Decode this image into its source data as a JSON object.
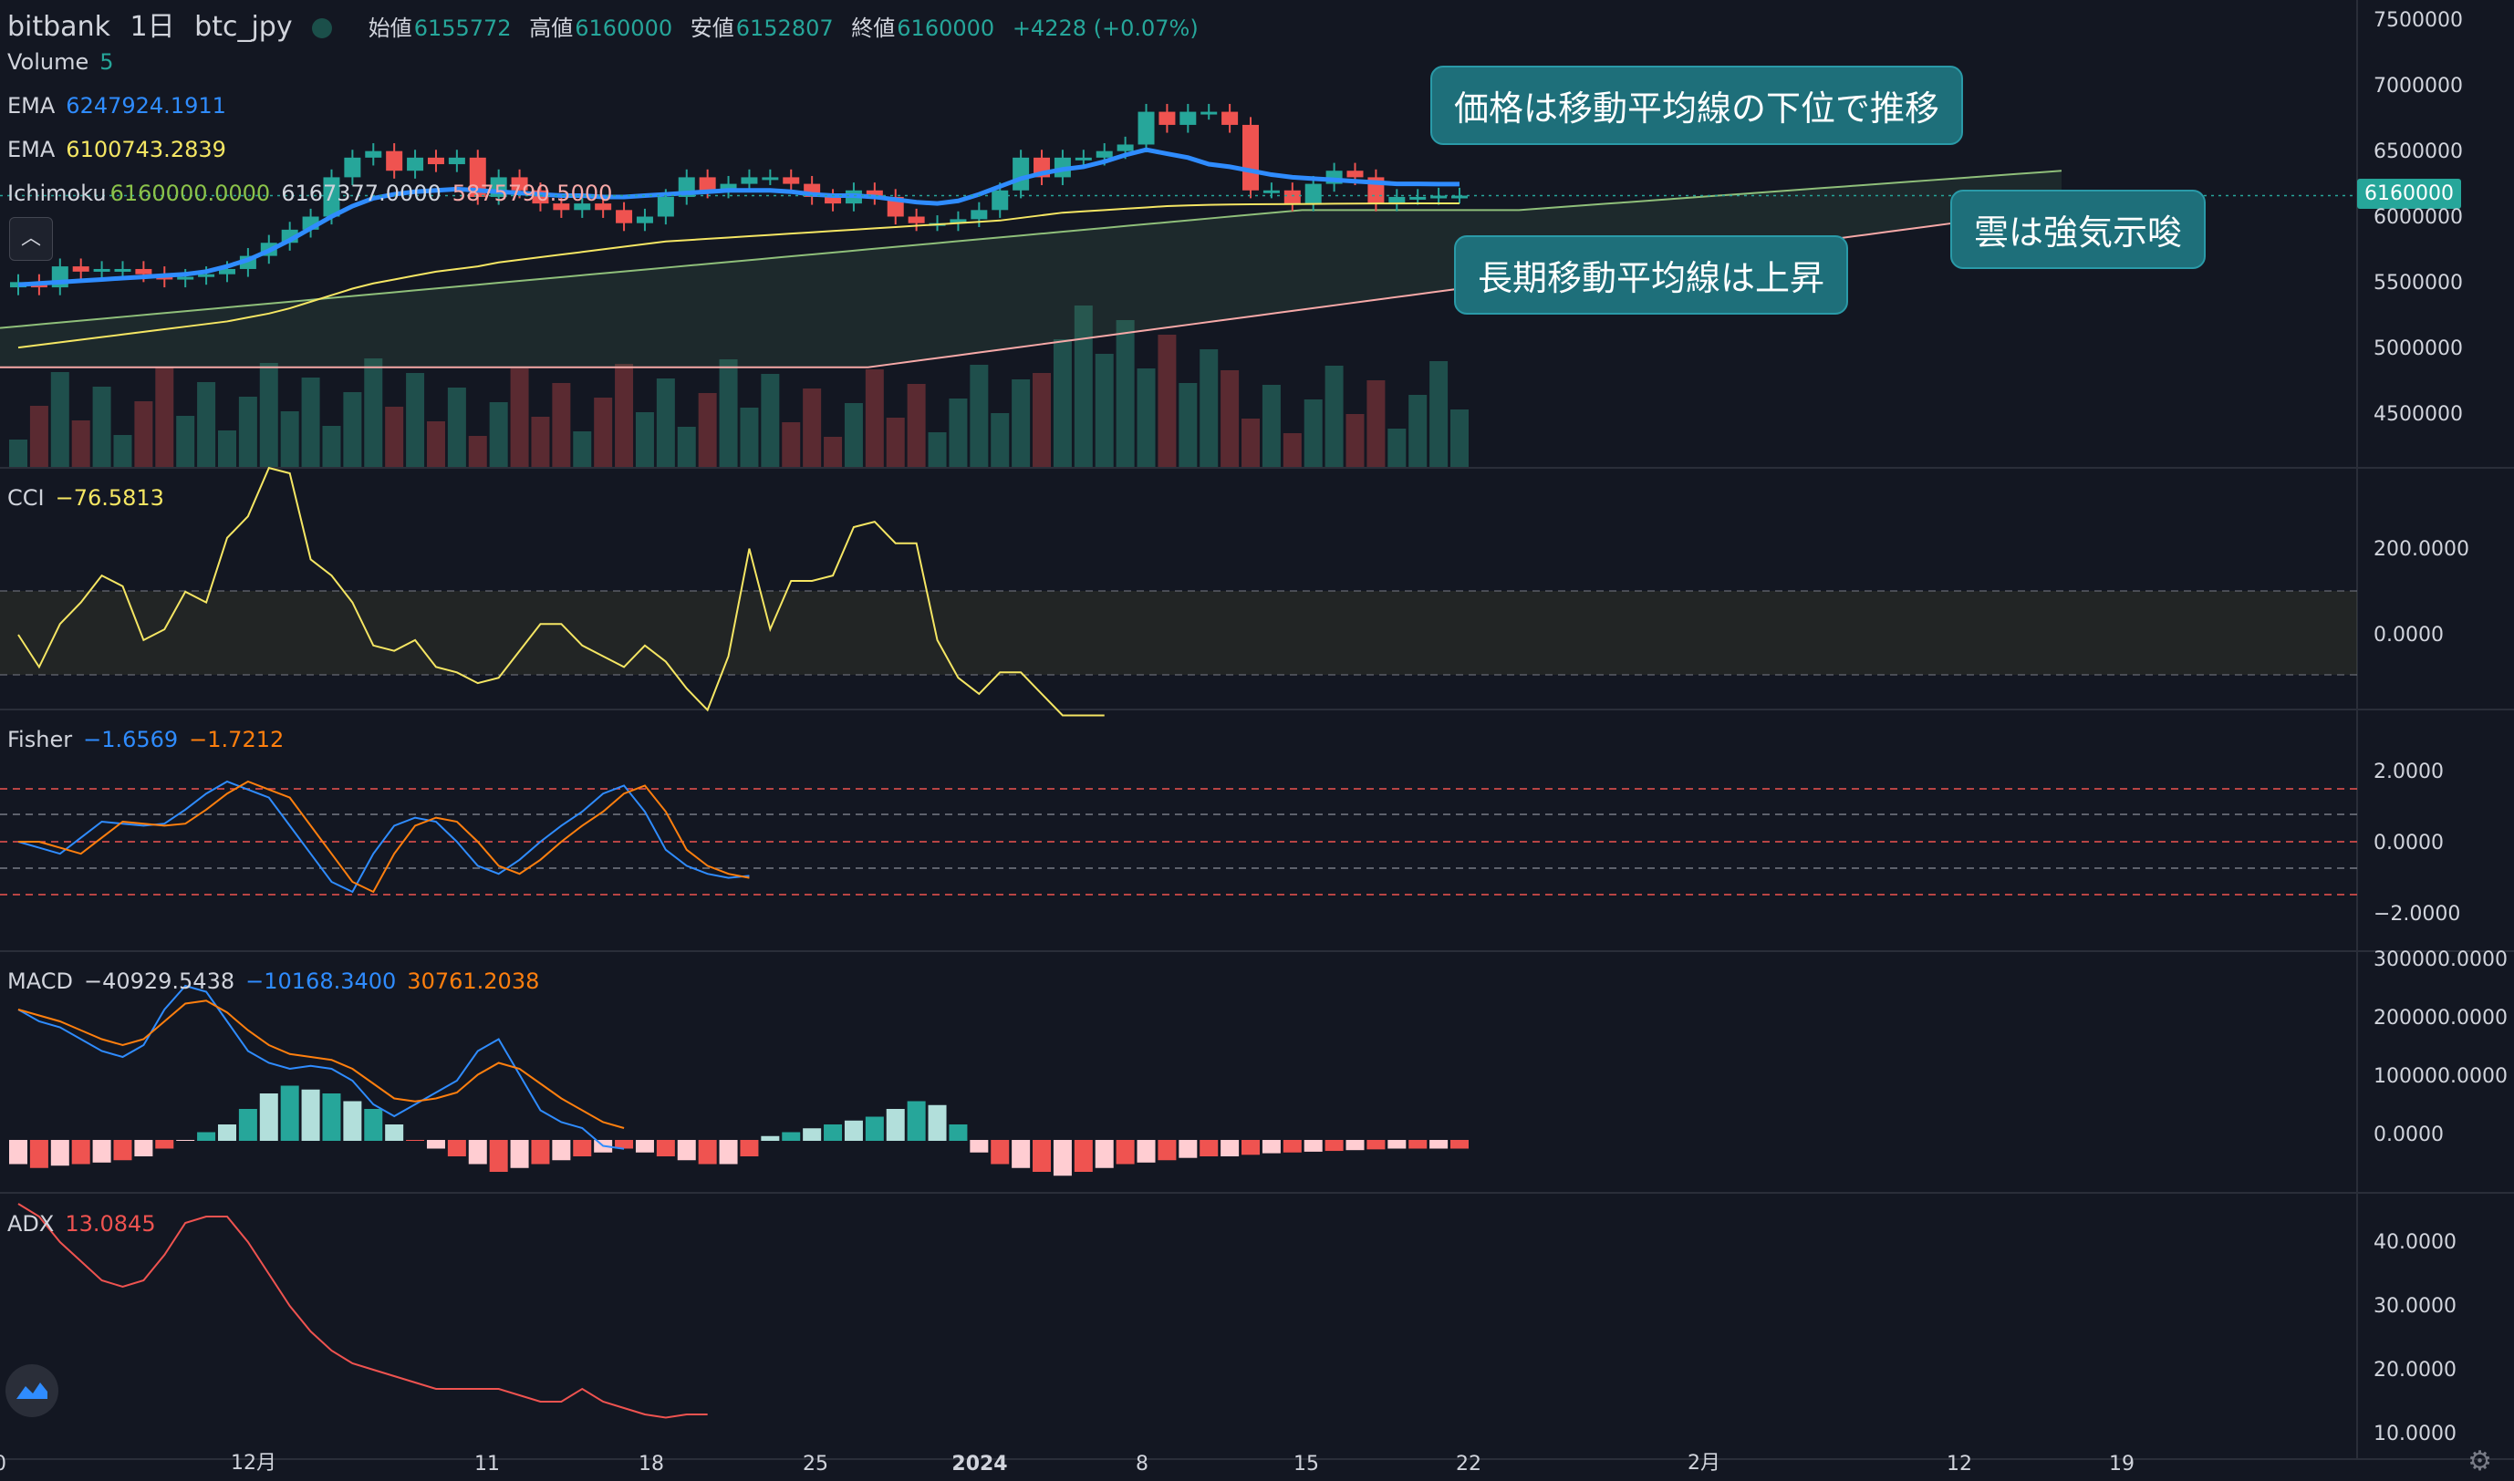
{
  "header": {
    "symbol_prefix": "bitbank",
    "interval": "1日",
    "symbol": "btc_jpy",
    "open_label": "始値",
    "open": "6155772",
    "high_label": "高値",
    "high": "6160000",
    "low_label": "安値",
    "low": "6152807",
    "close_label": "終値",
    "close": "6160000",
    "change": "+4228 (+0.07%)"
  },
  "legend": {
    "volume_label": "Volume",
    "volume_value": "5",
    "ema1_label": "EMA",
    "ema1_value": "6247924.1911",
    "ema2_label": "EMA",
    "ema2_value": "6100743.2839",
    "ichimoku_label": "Ichimoku",
    "ichimoku_v1": "6160000.0000",
    "ichimoku_v2": "6167377.0000",
    "ichimoku_v3": "5875790.5000",
    "cci_label": "CCI",
    "cci_value": "−76.5813",
    "fisher_label": "Fisher",
    "fisher_v1": "−1.6569",
    "fisher_v2": "−1.7212",
    "macd_label": "MACD",
    "macd_v1": "−40929.5438",
    "macd_v2": "−10168.3400",
    "macd_v3": "30761.2038",
    "adx_label": "ADX",
    "adx_value": "13.0845"
  },
  "callouts": {
    "c1": "価格は移動平均線の下位で推移",
    "c2": "長期移動平均線は上昇",
    "c3": "雲は強気示唆"
  },
  "price_tag": "6160000",
  "colors": {
    "up": "#26a69a",
    "down": "#ef5350",
    "ema_fast": "#2f8cff",
    "ema_slow": "#f5e663",
    "bg": "#131722",
    "grid": "#2a2e39"
  },
  "chart_data": {
    "type": "candlestick",
    "x_labels": [
      "0",
      "12月",
      "11",
      "18",
      "25",
      "2024",
      "8",
      "15",
      "22",
      "2月",
      "12",
      "19"
    ],
    "price_axis": [
      "7500000",
      "7000000",
      "6500000",
      "6000000",
      "5500000",
      "5000000",
      "4500000"
    ],
    "cci_axis": [
      "200.0000",
      "0.0000"
    ],
    "fisher_axis": [
      "2.0000",
      "0.0000",
      "−2.0000"
    ],
    "macd_axis": [
      "300000.0000",
      "200000.0000",
      "100000.0000",
      "0.0000"
    ],
    "adx_axis": [
      "40.0000",
      "30.0000",
      "20.0000",
      "10.0000"
    ],
    "closes": [
      5500000,
      5460000,
      5620000,
      5580000,
      5600000,
      5600000,
      5560000,
      5520000,
      5540000,
      5560000,
      5600000,
      5700000,
      5800000,
      5900000,
      6000000,
      6300000,
      6450000,
      6500000,
      6350000,
      6450000,
      6400000,
      6450000,
      6150000,
      6300000,
      6200000,
      6100000,
      6050000,
      6100000,
      6050000,
      5950000,
      6000000,
      6150000,
      6300000,
      6200000,
      6250000,
      6300000,
      6300000,
      6250000,
      6150000,
      6100000,
      6200000,
      6150000,
      6000000,
      5950000,
      5950000,
      5980000,
      6050000,
      6200000,
      6450000,
      6300000,
      6450000,
      6450000,
      6500000,
      6550000,
      6800000,
      6700000,
      6800000,
      6800000,
      6700000,
      6200000,
      6200000,
      6100000,
      6250000,
      6350000,
      6300000,
      6100000,
      6150000,
      6150000,
      6160000,
      6160000
    ],
    "ema_fast": [
      5480000,
      5490000,
      5500000,
      5510000,
      5520000,
      5530000,
      5540000,
      5550000,
      5560000,
      5580000,
      5620000,
      5670000,
      5740000,
      5820000,
      5910000,
      6000000,
      6080000,
      6140000,
      6170000,
      6190000,
      6200000,
      6210000,
      6200000,
      6190000,
      6180000,
      6170000,
      6160000,
      6160000,
      6150000,
      6150000,
      6160000,
      6170000,
      6180000,
      6190000,
      6200000,
      6200000,
      6200000,
      6190000,
      6170000,
      6160000,
      6160000,
      6150000,
      6130000,
      6110000,
      6100000,
      6120000,
      6170000,
      6230000,
      6290000,
      6330000,
      6360000,
      6380000,
      6420000,
      6470000,
      6510000,
      6480000,
      6450000,
      6400000,
      6380000,
      6350000,
      6320000,
      6300000,
      6290000,
      6280000,
      6270000,
      6260000,
      6250000,
      6250000,
      6248000,
      6247924
    ],
    "ema_slow": [
      5000000,
      5020000,
      5040000,
      5060000,
      5080000,
      5100000,
      5120000,
      5140000,
      5160000,
      5180000,
      5200000,
      5230000,
      5260000,
      5300000,
      5350000,
      5400000,
      5450000,
      5490000,
      5520000,
      5550000,
      5580000,
      5600000,
      5620000,
      5650000,
      5670000,
      5690000,
      5710000,
      5730000,
      5750000,
      5770000,
      5790000,
      5810000,
      5820000,
      5830000,
      5840000,
      5850000,
      5860000,
      5870000,
      5880000,
      5890000,
      5900000,
      5910000,
      5920000,
      5930000,
      5940000,
      5950000,
      5960000,
      5970000,
      5990000,
      6010000,
      6030000,
      6040000,
      6050000,
      6060000,
      6070000,
      6080000,
      6085000,
      6090000,
      6092000,
      6094000,
      6095000,
      6096000,
      6097000,
      6098000,
      6099000,
      6100000,
      6100300,
      6100500,
      6100700,
      6100743
    ]
  }
}
